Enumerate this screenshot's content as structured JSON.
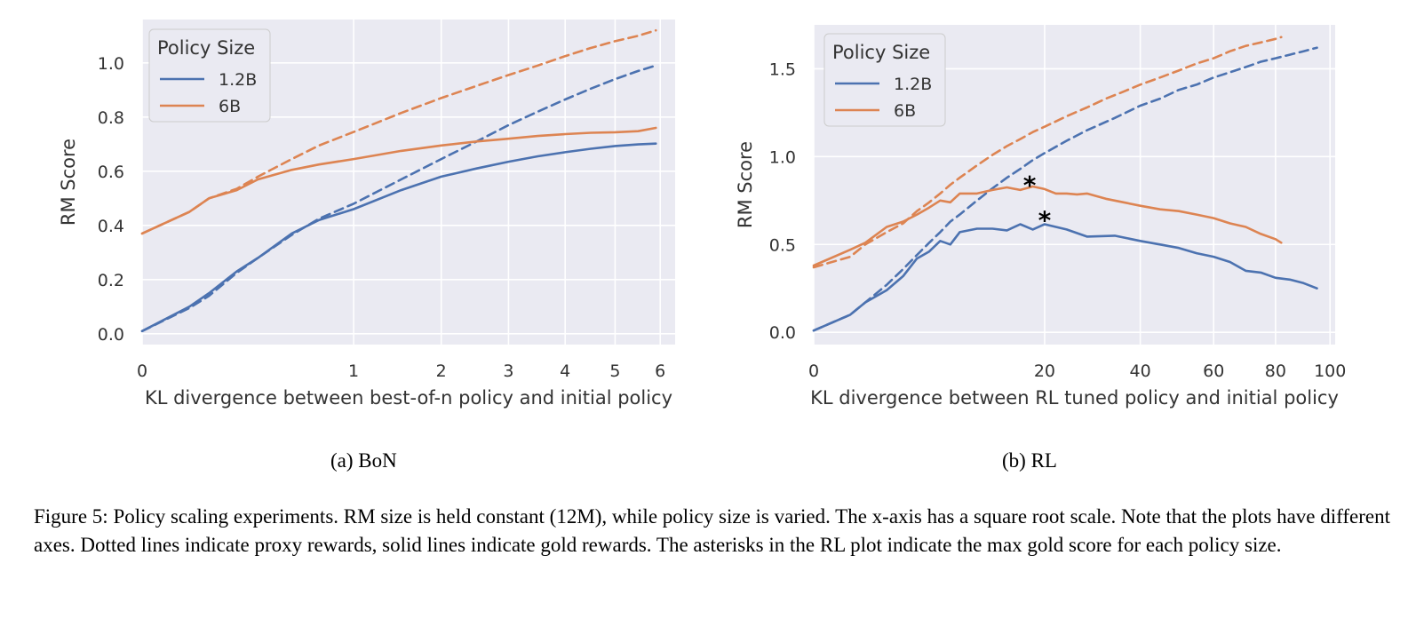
{
  "figure": {
    "subcaption_a": "(a) BoN",
    "subcaption_b": "(b) RL",
    "caption": "Figure 5: Policy scaling experiments. RM size is held constant (12M), while policy size is varied. The x-axis has a square root scale. Note that the plots have different axes. Dotted lines indicate proxy rewards, solid lines indicate gold rewards. The asterisks in the RL plot indicate the max gold score for each policy size."
  },
  "colors": {
    "panel_bg": "#eaeaf2",
    "grid": "#ffffff",
    "blue": "#4c72b0",
    "orange": "#dd8452",
    "text": "#333333"
  },
  "chart_data": [
    {
      "type": "line",
      "xscale": "sqrt",
      "xlabel": "KL divergence between best-of-n policy and initial policy",
      "ylabel": "RM Score",
      "xlim": [
        0,
        6.35
      ],
      "ylim": [
        -0.04,
        1.16
      ],
      "xticks": [
        0,
        1,
        2,
        3,
        4,
        5,
        6
      ],
      "yticks": [
        0.0,
        0.2,
        0.4,
        0.6,
        0.8,
        1.0
      ],
      "ytick_labels": [
        "0.0",
        "0.2",
        "0.4",
        "0.6",
        "0.8",
        "1.0"
      ],
      "grid": true,
      "legend": {
        "title": "Policy Size",
        "location": "top-left",
        "entries": [
          "1.2B",
          "6B"
        ]
      },
      "series": [
        {
          "name": "1.2B",
          "kind": "gold",
          "style": "solid",
          "color": "#4c72b0",
          "x": [
            0,
            0.05,
            0.1,
            0.2,
            0.3,
            0.5,
            0.7,
            1.0,
            1.5,
            2.0,
            2.5,
            3.0,
            3.5,
            4.0,
            4.5,
            5.0,
            5.5,
            5.9
          ],
          "y": [
            0.01,
            0.1,
            0.15,
            0.23,
            0.28,
            0.37,
            0.42,
            0.46,
            0.53,
            0.58,
            0.61,
            0.635,
            0.655,
            0.67,
            0.683,
            0.693,
            0.699,
            0.702
          ]
        },
        {
          "name": "1.2B",
          "kind": "proxy",
          "style": "dashed",
          "color": "#4c72b0",
          "x": [
            0,
            0.05,
            0.1,
            0.2,
            0.3,
            0.5,
            0.7,
            1.0,
            1.5,
            2.0,
            2.5,
            3.0,
            3.5,
            4.0,
            4.5,
            5.0,
            5.5,
            5.9
          ],
          "y": [
            0.01,
            0.095,
            0.14,
            0.225,
            0.28,
            0.365,
            0.425,
            0.48,
            0.57,
            0.645,
            0.71,
            0.77,
            0.82,
            0.865,
            0.905,
            0.94,
            0.97,
            0.99
          ]
        },
        {
          "name": "6B",
          "kind": "gold",
          "style": "solid",
          "color": "#dd8452",
          "x": [
            0,
            0.05,
            0.1,
            0.2,
            0.3,
            0.5,
            0.7,
            1.0,
            1.5,
            2.0,
            2.5,
            3.0,
            3.5,
            4.0,
            4.5,
            5.0,
            5.5,
            5.9
          ],
          "y": [
            0.37,
            0.45,
            0.5,
            0.53,
            0.57,
            0.605,
            0.625,
            0.645,
            0.675,
            0.695,
            0.71,
            0.72,
            0.73,
            0.737,
            0.742,
            0.744,
            0.748,
            0.76
          ]
        },
        {
          "name": "6B",
          "kind": "proxy",
          "style": "dashed",
          "color": "#dd8452",
          "x": [
            0,
            0.05,
            0.1,
            0.2,
            0.3,
            0.5,
            0.7,
            1.0,
            1.5,
            2.0,
            2.5,
            3.0,
            3.5,
            4.0,
            4.5,
            5.0,
            5.5,
            5.9
          ],
          "y": [
            0.37,
            0.45,
            0.5,
            0.535,
            0.58,
            0.645,
            0.695,
            0.745,
            0.815,
            0.87,
            0.915,
            0.955,
            0.99,
            1.025,
            1.055,
            1.08,
            1.1,
            1.12
          ]
        }
      ]
    },
    {
      "type": "line",
      "xscale": "sqrt",
      "xlabel": "KL divergence between RL tuned policy and initial policy",
      "ylabel": "RM Score",
      "xlim": [
        0,
        102
      ],
      "ylim": [
        -0.07,
        1.75
      ],
      "xticks": [
        0,
        20,
        40,
        60,
        80,
        100
      ],
      "yticks": [
        0.0,
        0.5,
        1.0,
        1.5
      ],
      "ytick_labels": [
        "0.0",
        "0.5",
        "1.0",
        "1.5"
      ],
      "grid": true,
      "legend": {
        "title": "Policy Size",
        "location": "top-left",
        "entries": [
          "1.2B",
          "6B"
        ]
      },
      "annotations": [
        {
          "text": "*",
          "x": 17.5,
          "y": 0.85,
          "color": "#000000",
          "note": "max gold 6B"
        },
        {
          "text": "*",
          "x": 20,
          "y": 0.65,
          "color": "#000000",
          "note": "max gold 1.2B"
        }
      ],
      "series": [
        {
          "name": "1.2B",
          "kind": "gold",
          "style": "solid",
          "color": "#4c72b0",
          "x": [
            0,
            0.5,
            1,
            2,
            3,
            4,
            5,
            6,
            7,
            8,
            10,
            12,
            14,
            16,
            18,
            20,
            24,
            28,
            34,
            40,
            45,
            50,
            55,
            60,
            65,
            70,
            75,
            80,
            85,
            90,
            95
          ],
          "y": [
            0.01,
            0.1,
            0.17,
            0.24,
            0.32,
            0.42,
            0.46,
            0.52,
            0.5,
            0.57,
            0.59,
            0.59,
            0.58,
            0.615,
            0.585,
            0.615,
            0.585,
            0.545,
            0.55,
            0.52,
            0.5,
            0.48,
            0.45,
            0.43,
            0.4,
            0.35,
            0.34,
            0.31,
            0.3,
            0.28,
            0.25
          ]
        },
        {
          "name": "1.2B",
          "kind": "proxy",
          "style": "dashed",
          "color": "#4c72b0",
          "x": [
            0,
            0.5,
            1,
            2,
            3,
            4,
            5,
            6,
            7,
            8,
            10,
            12,
            14,
            16,
            18,
            20,
            24,
            28,
            34,
            40,
            45,
            50,
            55,
            60,
            65,
            70,
            75,
            80,
            85,
            90,
            95
          ],
          "y": [
            0.01,
            0.1,
            0.17,
            0.27,
            0.36,
            0.44,
            0.51,
            0.57,
            0.63,
            0.67,
            0.75,
            0.82,
            0.88,
            0.93,
            0.98,
            1.02,
            1.09,
            1.15,
            1.22,
            1.29,
            1.33,
            1.38,
            1.41,
            1.45,
            1.48,
            1.51,
            1.54,
            1.56,
            1.58,
            1.6,
            1.62
          ]
        },
        {
          "name": "6B",
          "kind": "gold",
          "style": "solid",
          "color": "#dd8452",
          "x": [
            0,
            0.5,
            1,
            2,
            3,
            4,
            5,
            6,
            7,
            8,
            10,
            12,
            14,
            16,
            18,
            20,
            22,
            24,
            26,
            28,
            32,
            36,
            40,
            45,
            50,
            55,
            60,
            65,
            70,
            75,
            80,
            82
          ],
          "y": [
            0.38,
            0.47,
            0.51,
            0.6,
            0.63,
            0.67,
            0.71,
            0.75,
            0.74,
            0.79,
            0.79,
            0.81,
            0.825,
            0.81,
            0.83,
            0.815,
            0.79,
            0.79,
            0.785,
            0.79,
            0.76,
            0.74,
            0.72,
            0.7,
            0.69,
            0.67,
            0.65,
            0.62,
            0.6,
            0.56,
            0.53,
            0.51
          ]
        },
        {
          "name": "6B",
          "kind": "proxy",
          "style": "dashed",
          "color": "#dd8452",
          "x": [
            0,
            0.5,
            1,
            2,
            3,
            4,
            5,
            6,
            7,
            8,
            10,
            12,
            14,
            16,
            18,
            20,
            24,
            28,
            32,
            36,
            40,
            45,
            50,
            55,
            60,
            65,
            70,
            75,
            80,
            82
          ],
          "y": [
            0.37,
            0.43,
            0.5,
            0.57,
            0.62,
            0.69,
            0.74,
            0.79,
            0.84,
            0.88,
            0.95,
            1.01,
            1.06,
            1.1,
            1.14,
            1.17,
            1.23,
            1.28,
            1.33,
            1.37,
            1.41,
            1.45,
            1.49,
            1.53,
            1.56,
            1.6,
            1.63,
            1.65,
            1.67,
            1.68
          ]
        }
      ]
    }
  ]
}
